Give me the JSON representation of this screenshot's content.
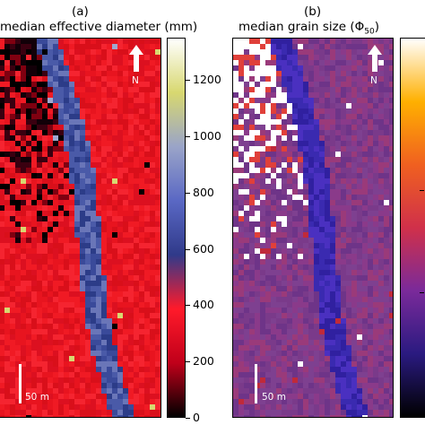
{
  "chart_data": [
    {
      "panel": "(a)",
      "type": "heatmap",
      "title": "median effective diameter (mm)",
      "colorbar": {
        "ticks": [
          "0",
          "200",
          "400",
          "600",
          "800",
          "1000",
          "1200"
        ],
        "range": [
          0,
          1350
        ],
        "colors": [
          "#000000",
          "#c0001a",
          "#ff1a2a",
          "#303a8a",
          "#5a68c4",
          "#9aa4c8",
          "#d8d870",
          "#ffffff"
        ]
      },
      "north_label": "N",
      "scale_label": "50 m"
    },
    {
      "panel": "(b)",
      "type": "heatmap",
      "title": "median grain size (Φ",
      "title_sub": "50",
      "title_close": ")",
      "colorbar": {
        "ticks": [],
        "colors": [
          "#000000",
          "#2a1a80",
          "#7a2a9a",
          "#d0304a",
          "#f06020",
          "#ffb000",
          "#ffffff"
        ]
      },
      "north_label": "N",
      "scale_label": "50 m"
    }
  ]
}
